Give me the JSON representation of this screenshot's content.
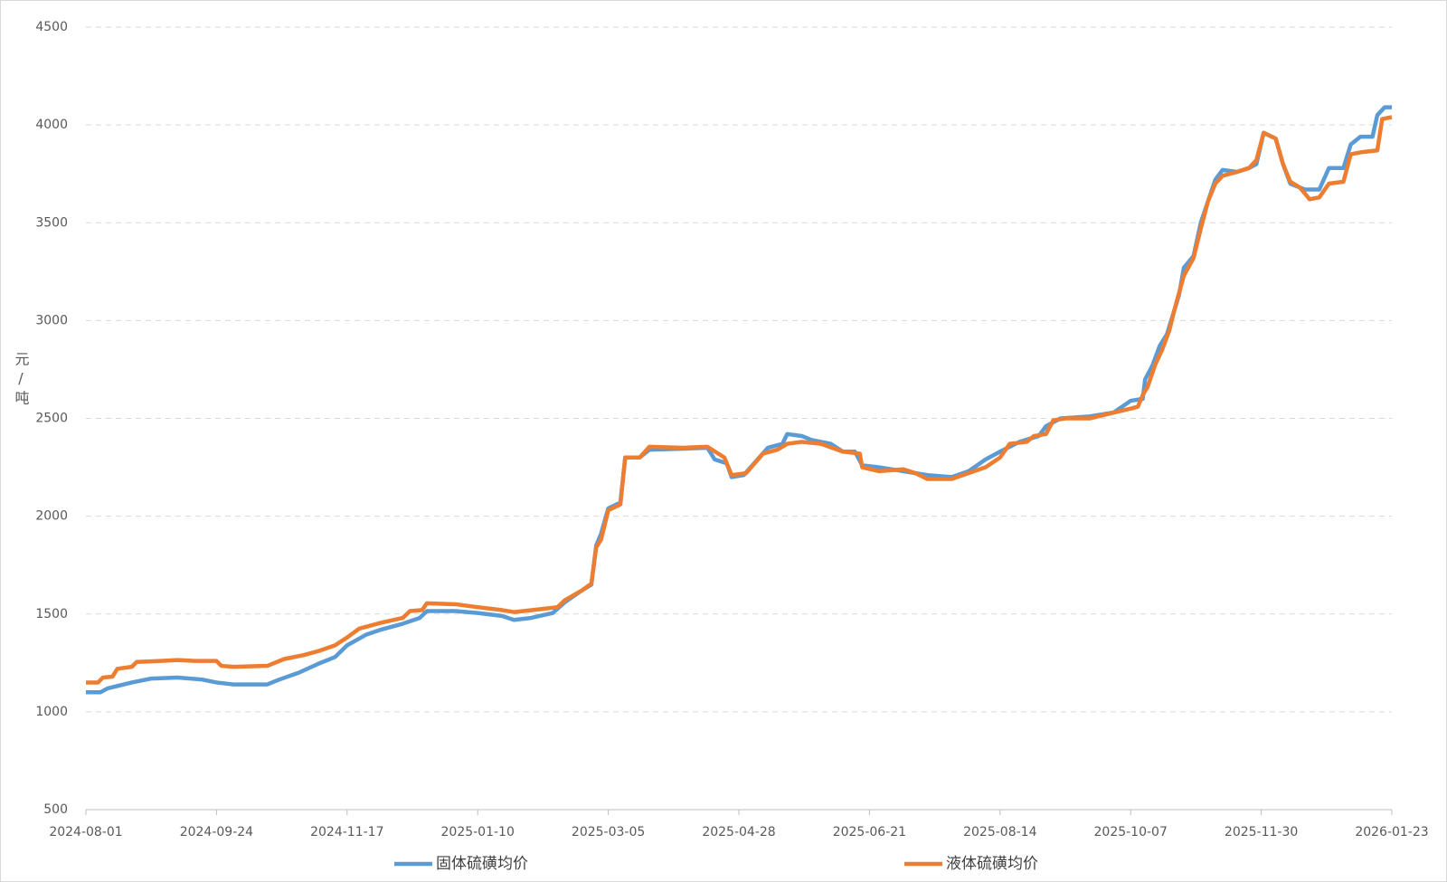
{
  "chart_data": {
    "type": "line",
    "y_label": "元/吨",
    "xlim": [
      "2024-08-01",
      "2026-01-23"
    ],
    "xticks": [
      "2024-08-01",
      "2024-09-24",
      "2024-11-17",
      "2025-01-10",
      "2025-03-05",
      "2025-04-28",
      "2025-06-21",
      "2025-08-14",
      "2025-10-07",
      "2025-11-30",
      "2026-01-23"
    ],
    "ylim": [
      500,
      4500
    ],
    "yticks": [
      500,
      1000,
      1500,
      2000,
      2500,
      3000,
      3500,
      4000,
      4500
    ],
    "grid": true,
    "legend": "bottom",
    "series": [
      {
        "name": "固体硫磺均价",
        "color": "#5b9bd5",
        "x": [
          "2024-08-01",
          "2024-08-07",
          "2024-08-10",
          "2024-08-20",
          "2024-08-28",
          "2024-09-08",
          "2024-09-18",
          "2024-09-24",
          "2024-10-01",
          "2024-10-15",
          "2024-10-20",
          "2024-10-28",
          "2024-11-05",
          "2024-11-12",
          "2024-11-17",
          "2024-11-25",
          "2024-12-01",
          "2024-12-10",
          "2024-12-17",
          "2024-12-20",
          "2025-01-01",
          "2025-01-10",
          "2025-01-20",
          "2025-01-25",
          "2025-02-01",
          "2025-02-10",
          "2025-02-15",
          "2025-02-22",
          "2025-02-26",
          "2025-02-28",
          "2025-03-02",
          "2025-03-05",
          "2025-03-10",
          "2025-03-12",
          "2025-03-18",
          "2025-03-22",
          "2025-04-05",
          "2025-04-15",
          "2025-04-18",
          "2025-04-23",
          "2025-04-25",
          "2025-04-30",
          "2025-05-10",
          "2025-05-16",
          "2025-05-18",
          "2025-05-24",
          "2025-05-28",
          "2025-06-05",
          "2025-06-10",
          "2025-06-15",
          "2025-06-18",
          "2025-06-25",
          "2025-07-05",
          "2025-07-15",
          "2025-07-25",
          "2025-08-01",
          "2025-08-08",
          "2025-08-14",
          "2025-08-22",
          "2025-08-30",
          "2025-09-02",
          "2025-09-08",
          "2025-09-20",
          "2025-09-30",
          "2025-10-07",
          "2025-10-12",
          "2025-10-13",
          "2025-10-16",
          "2025-10-19",
          "2025-10-22",
          "2025-10-25",
          "2025-10-27",
          "2025-10-29",
          "2025-11-02",
          "2025-11-05",
          "2025-11-08",
          "2025-11-11",
          "2025-11-14",
          "2025-11-20",
          "2025-11-25",
          "2025-11-28",
          "2025-12-01",
          "2025-12-06",
          "2025-12-09",
          "2025-12-12",
          "2025-12-18",
          "2025-12-24",
          "2025-12-28",
          "2026-01-03",
          "2026-01-06",
          "2026-01-10",
          "2026-01-15",
          "2026-01-17",
          "2026-01-20",
          "2026-01-23"
        ],
        "values": [
          1100,
          1100,
          1120,
          1150,
          1170,
          1175,
          1165,
          1150,
          1140,
          1140,
          1165,
          1200,
          1245,
          1280,
          1340,
          1395,
          1420,
          1450,
          1480,
          1515,
          1515,
          1505,
          1490,
          1470,
          1480,
          1505,
          1560,
          1620,
          1650,
          1850,
          1910,
          2040,
          2070,
          2300,
          2300,
          2340,
          2345,
          2350,
          2290,
          2270,
          2200,
          2210,
          2350,
          2370,
          2420,
          2410,
          2390,
          2370,
          2330,
          2330,
          2260,
          2250,
          2230,
          2210,
          2200,
          2230,
          2290,
          2330,
          2380,
          2410,
          2460,
          2500,
          2510,
          2530,
          2590,
          2600,
          2700,
          2770,
          2870,
          2930,
          3050,
          3130,
          3270,
          3330,
          3500,
          3610,
          3720,
          3770,
          3760,
          3780,
          3800,
          3960,
          3930,
          3800,
          3700,
          3670,
          3670,
          3780,
          3780,
          3900,
          3940,
          3940,
          4050,
          4090,
          4090
        ]
      },
      {
        "name": "液体硫磺均价",
        "color": "#ed7d31",
        "x": [
          "2024-08-01",
          "2024-08-06",
          "2024-08-08",
          "2024-08-12",
          "2024-08-14",
          "2024-08-20",
          "2024-08-22",
          "2024-09-01",
          "2024-09-08",
          "2024-09-15",
          "2024-09-24",
          "2024-09-26",
          "2024-10-01",
          "2024-10-15",
          "2024-10-22",
          "2024-10-30",
          "2024-11-05",
          "2024-11-12",
          "2024-11-17",
          "2024-11-22",
          "2024-12-01",
          "2024-12-10",
          "2024-12-13",
          "2024-12-18",
          "2024-12-20",
          "2025-01-01",
          "2025-01-10",
          "2025-01-20",
          "2025-01-25",
          "2025-02-05",
          "2025-02-12",
          "2025-02-15",
          "2025-02-22",
          "2025-02-26",
          "2025-02-28",
          "2025-03-02",
          "2025-03-05",
          "2025-03-10",
          "2025-03-12",
          "2025-03-18",
          "2025-03-22",
          "2025-04-05",
          "2025-04-15",
          "2025-04-22",
          "2025-04-25",
          "2025-05-01",
          "2025-05-08",
          "2025-05-14",
          "2025-05-18",
          "2025-05-24",
          "2025-06-01",
          "2025-06-10",
          "2025-06-17",
          "2025-06-18",
          "2025-06-25",
          "2025-07-05",
          "2025-07-10",
          "2025-07-15",
          "2025-07-25",
          "2025-08-01",
          "2025-08-08",
          "2025-08-14",
          "2025-08-18",
          "2025-08-25",
          "2025-08-28",
          "2025-09-02",
          "2025-09-05",
          "2025-09-10",
          "2025-09-20",
          "2025-10-07",
          "2025-10-10",
          "2025-10-12",
          "2025-10-14",
          "2025-10-17",
          "2025-10-20",
          "2025-10-23",
          "2025-10-25",
          "2025-10-29",
          "2025-11-02",
          "2025-11-05",
          "2025-11-08",
          "2025-11-11",
          "2025-11-14",
          "2025-11-20",
          "2025-11-25",
          "2025-11-28",
          "2025-12-01",
          "2025-12-06",
          "2025-12-09",
          "2025-12-12",
          "2025-12-16",
          "2025-12-20",
          "2025-12-24",
          "2025-12-28",
          "2026-01-03",
          "2026-01-06",
          "2026-01-10",
          "2026-01-17",
          "2026-01-19",
          "2026-01-23"
        ],
        "values": [
          1150,
          1150,
          1175,
          1180,
          1220,
          1230,
          1255,
          1260,
          1265,
          1260,
          1260,
          1235,
          1230,
          1235,
          1270,
          1290,
          1310,
          1340,
          1380,
          1425,
          1455,
          1480,
          1515,
          1520,
          1555,
          1550,
          1535,
          1520,
          1510,
          1525,
          1535,
          1570,
          1620,
          1655,
          1840,
          1880,
          2030,
          2060,
          2300,
          2300,
          2355,
          2350,
          2355,
          2300,
          2210,
          2220,
          2320,
          2340,
          2370,
          2380,
          2370,
          2330,
          2320,
          2250,
          2230,
          2240,
          2220,
          2190,
          2190,
          2220,
          2250,
          2300,
          2370,
          2380,
          2410,
          2420,
          2490,
          2500,
          2500,
          2550,
          2560,
          2620,
          2660,
          2770,
          2850,
          2950,
          3050,
          3230,
          3320,
          3470,
          3610,
          3700,
          3740,
          3760,
          3780,
          3820,
          3960,
          3930,
          3800,
          3710,
          3680,
          3620,
          3630,
          3700,
          3710,
          3850,
          3860,
          3870,
          4030,
          4040
        ]
      }
    ]
  }
}
